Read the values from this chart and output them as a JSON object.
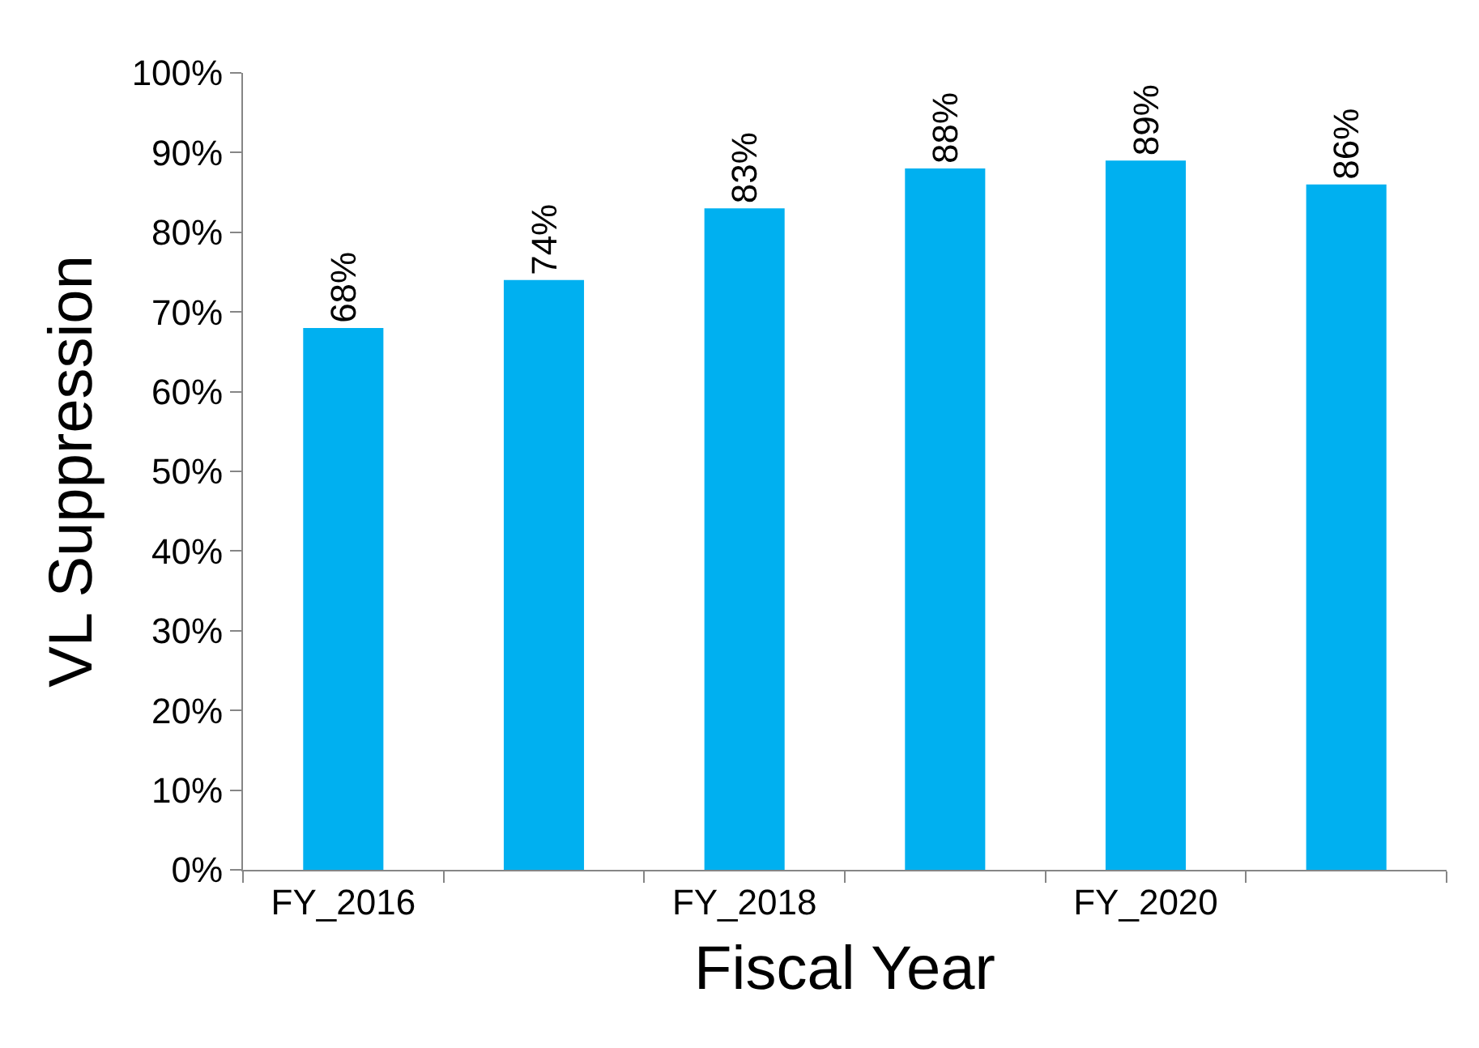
{
  "chart_data": {
    "type": "bar",
    "xlabel": "Fiscal Year",
    "ylabel": "VL Suppression",
    "categories": [
      "FY_2016",
      null,
      "FY_2018",
      null,
      "FY_2020",
      null
    ],
    "values": [
      68,
      74,
      83,
      88,
      89,
      86
    ],
    "color": "#00b0f0",
    "value_labels": [
      "68%",
      "74%",
      "83%",
      "88%",
      "89%",
      "86%"
    ],
    "ylim": [
      0,
      100
    ],
    "yticks": [
      {
        "value": 0,
        "label": "0%"
      },
      {
        "value": 10,
        "label": "10%"
      },
      {
        "value": 20,
        "label": "20%"
      },
      {
        "value": 30,
        "label": "30%"
      },
      {
        "value": 40,
        "label": "40%"
      },
      {
        "value": 50,
        "label": "50%"
      },
      {
        "value": 60,
        "label": "60%"
      },
      {
        "value": 70,
        "label": "70%"
      },
      {
        "value": 80,
        "label": "80%"
      },
      {
        "value": 90,
        "label": "90%"
      },
      {
        "value": 100,
        "label": "100%"
      }
    ],
    "grid": false,
    "legend": false
  }
}
